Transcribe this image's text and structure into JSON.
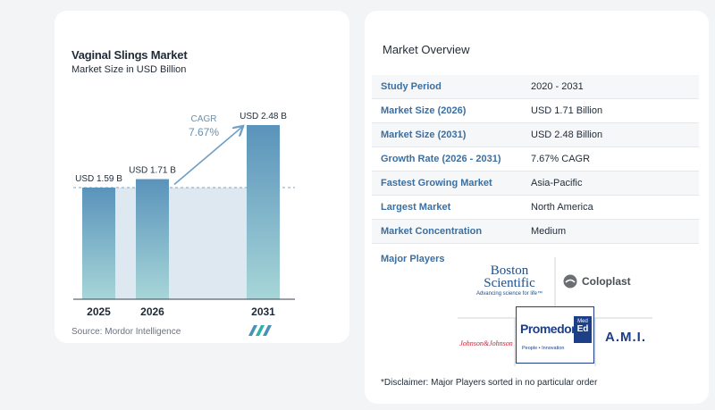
{
  "chart_data": {
    "type": "bar",
    "title": "Vaginal Slings Market",
    "subtitle": "Market Size in USD Billion",
    "categories": [
      "2025",
      "2026",
      "2031"
    ],
    "values": [
      1.59,
      1.71,
      2.48
    ],
    "data_labels": [
      "USD 1.59 B",
      "USD 1.71 B",
      "USD 2.48 B"
    ],
    "cagr_label": "CAGR",
    "cagr_value": "7.67%",
    "ylim": [
      0,
      2.48
    ],
    "grid": false,
    "colors": {
      "bar_top": "#5a93bb",
      "bar_bottom": "#a7d6d8",
      "band": "#dde8f1",
      "arrow": "#6f9fc4"
    }
  },
  "source": "Source:  Mordor Intelligence",
  "overview": {
    "title": "Market Overview",
    "rows": [
      {
        "label": "Study Period",
        "value": "2020 - 2031"
      },
      {
        "label": "Market Size (2026)",
        "value": "USD 1.71 Billion"
      },
      {
        "label": "Market Size (2031)",
        "value": "USD 2.48 Billion"
      },
      {
        "label": "Growth Rate (2026 - 2031)",
        "value": "7.67% CAGR"
      },
      {
        "label": "Fastest Growing Market",
        "value": "Asia-Pacific"
      },
      {
        "label": "Largest Market",
        "value": "North America"
      },
      {
        "label": "Market Concentration",
        "value": "Medium"
      }
    ]
  },
  "players": {
    "label": "Major Players",
    "logos": [
      {
        "name": "Boston Scientific",
        "line1": "Boston",
        "line2": "Scientific",
        "tagline": "Advancing science for life™"
      },
      {
        "name": "Coloplast",
        "text": "Coloplast"
      },
      {
        "name": "Johnson & Johnson",
        "text": "Johnson&Johnson"
      },
      {
        "name": "Promedon",
        "text": "Promedon",
        "badge_top": "Med",
        "badge_bottom": "Ed",
        "tagline": "People • Innovation"
      },
      {
        "name": "A.M.I.",
        "text": "A.M.I."
      }
    ]
  },
  "disclaimer": "*Disclaimer: Major Players sorted in no particular order"
}
